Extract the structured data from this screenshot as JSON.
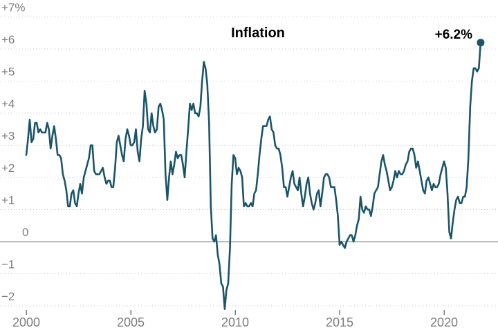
{
  "chart_data": {
    "type": "line",
    "title": "Inflation",
    "end_annotation": {
      "label": "+6.2%",
      "value": 6.2
    },
    "x_start_year": 2000,
    "x_start_month": 1,
    "frequency": "monthly",
    "series": [
      {
        "name": "Inflation",
        "values": [
          2.7,
          3.2,
          3.8,
          3.1,
          3.2,
          3.7,
          3.7,
          3.4,
          3.5,
          3.4,
          3.4,
          3.4,
          3.7,
          3.5,
          2.9,
          3.3,
          3.6,
          3.2,
          2.7,
          2.7,
          2.6,
          2.1,
          1.9,
          1.6,
          1.1,
          1.1,
          1.5,
          1.6,
          1.2,
          1.1,
          1.5,
          1.8,
          1.5,
          2.0,
          2.2,
          2.4,
          2.6,
          3.0,
          3.0,
          2.2,
          2.1,
          2.1,
          2.1,
          2.2,
          2.3,
          2.0,
          1.8,
          1.9,
          1.9,
          1.7,
          1.7,
          2.3,
          3.1,
          3.3,
          3.0,
          2.7,
          2.5,
          3.2,
          3.5,
          3.3,
          3.0,
          3.0,
          3.1,
          3.5,
          2.8,
          2.5,
          3.2,
          3.6,
          4.7,
          4.3,
          3.5,
          3.4,
          4.0,
          3.6,
          3.4,
          3.5,
          4.2,
          4.3,
          4.1,
          3.8,
          2.1,
          1.3,
          2.0,
          2.5,
          2.1,
          2.4,
          2.8,
          2.6,
          2.7,
          2.7,
          2.4,
          2.0,
          2.8,
          3.5,
          4.3,
          4.1,
          4.3,
          4.0,
          4.0,
          3.9,
          4.2,
          5.0,
          5.6,
          5.4,
          4.9,
          3.7,
          1.1,
          0.1,
          0.0,
          0.2,
          -0.4,
          -0.7,
          -1.3,
          -1.4,
          -2.1,
          -1.5,
          -1.3,
          -0.2,
          1.8,
          2.7,
          2.6,
          2.1,
          2.3,
          2.2,
          2.0,
          1.1,
          1.2,
          1.1,
          1.1,
          1.2,
          1.1,
          1.5,
          1.6,
          2.1,
          2.7,
          3.2,
          3.6,
          3.6,
          3.6,
          3.8,
          3.9,
          3.5,
          3.4,
          3.0,
          2.9,
          2.9,
          2.7,
          2.3,
          1.7,
          1.7,
          1.4,
          1.7,
          2.0,
          2.2,
          1.8,
          1.7,
          1.6,
          2.0,
          1.5,
          1.1,
          1.4,
          1.8,
          2.0,
          1.5,
          1.2,
          1.0,
          1.2,
          1.5,
          1.6,
          1.1,
          1.5,
          2.0,
          2.1,
          2.1,
          2.0,
          1.7,
          1.7,
          1.7,
          1.3,
          0.8,
          -0.1,
          0.0,
          -0.1,
          -0.2,
          0.0,
          0.1,
          0.2,
          0.2,
          0.0,
          0.2,
          0.5,
          0.7,
          1.4,
          1.0,
          0.9,
          1.1,
          1.0,
          1.0,
          0.8,
          1.1,
          1.5,
          1.6,
          1.7,
          2.1,
          2.5,
          2.7,
          2.4,
          2.2,
          1.9,
          1.6,
          1.7,
          1.9,
          2.2,
          2.0,
          2.2,
          2.1,
          2.1,
          2.2,
          2.4,
          2.5,
          2.8,
          2.9,
          2.9,
          2.7,
          2.3,
          2.5,
          2.2,
          1.9,
          1.6,
          1.5,
          1.9,
          2.0,
          1.8,
          1.6,
          1.8,
          1.7,
          1.7,
          1.8,
          2.1,
          2.3,
          2.5,
          2.3,
          1.5,
          0.3,
          0.1,
          0.6,
          1.0,
          1.3,
          1.4,
          1.2,
          1.2,
          1.4,
          1.4,
          1.7,
          2.6,
          4.2,
          5.0,
          5.4,
          5.4,
          5.3,
          5.4,
          6.2
        ]
      }
    ],
    "y_ticks": [
      {
        "value": 7,
        "label": "+7%"
      },
      {
        "value": 6,
        "label": "+6"
      },
      {
        "value": 5,
        "label": "+5"
      },
      {
        "value": 4,
        "label": "+4"
      },
      {
        "value": 3,
        "label": "+3"
      },
      {
        "value": 2,
        "label": "+2"
      },
      {
        "value": 1,
        "label": "+1"
      },
      {
        "value": 0,
        "label": "0"
      },
      {
        "value": -1,
        "label": "−1"
      },
      {
        "value": -2,
        "label": "−2"
      }
    ],
    "x_ticks": [
      {
        "value": 2000,
        "label": "2000"
      },
      {
        "value": 2005,
        "label": "2005"
      },
      {
        "value": 2010,
        "label": "2010"
      },
      {
        "value": 2015,
        "label": "2015"
      },
      {
        "value": 2020,
        "label": "2020"
      }
    ],
    "ylim": [
      -2.6,
      7.5
    ],
    "xlim": [
      2000,
      2022.6
    ],
    "grid": "dotted horizontal, solid zero line, legend none",
    "colors": {
      "background": "#ffffff",
      "line": "#1a5469",
      "grid": "#c9c9c9",
      "zero_line": "#9a9a9a",
      "axis_text": "#7d7d7d",
      "title_text": "#000000"
    }
  }
}
